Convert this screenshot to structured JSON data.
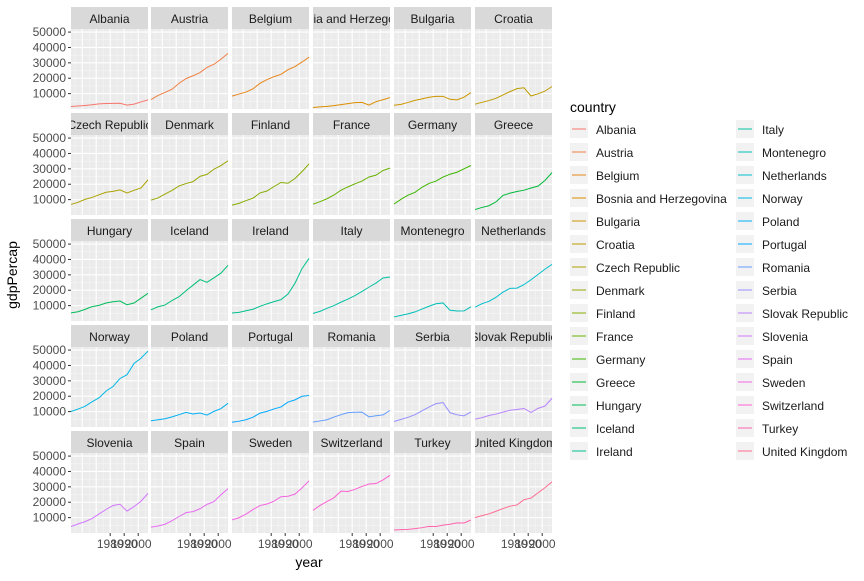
{
  "chart_data": {
    "type": "line",
    "facet_by": "country",
    "xlabel": "year",
    "ylabel": "gdpPercap",
    "x_ticks": [
      1980,
      1990,
      2000
    ],
    "x_tick_labels": [
      "1980",
      "1990",
      "2000"
    ],
    "y_ticks": [
      10000,
      20000,
      30000,
      40000,
      50000
    ],
    "y_tick_labels": [
      "10000",
      "20000",
      "30000",
      "40000",
      "50000"
    ],
    "xlim": [
      1952,
      2007
    ],
    "ylim": [
      0,
      52000
    ],
    "grid": true,
    "legend_position": "right",
    "legend_title": "country",
    "x": [
      1952,
      1957,
      1962,
      1967,
      1972,
      1977,
      1982,
      1987,
      1992,
      1997,
      2002,
      2007
    ],
    "series": [
      {
        "name": "Albania",
        "color": "#F8766D",
        "values": [
          1601,
          1942,
          2313,
          2760,
          3313,
          3533,
          3631,
          3739,
          2497,
          3193,
          4604,
          5937
        ]
      },
      {
        "name": "Austria",
        "color": "#F17F43",
        "values": [
          6137,
          8843,
          10751,
          12835,
          16662,
          19749,
          21597,
          23688,
          27042,
          29096,
          32418,
          36126
        ]
      },
      {
        "name": "Belgium",
        "color": "#E7861B",
        "values": [
          8343,
          9715,
          10991,
          13149,
          16672,
          19118,
          20980,
          22526,
          25576,
          27561,
          30486,
          33693
        ]
      },
      {
        "name": "Bosnia and Herzegovina",
        "color": "#DB8E00",
        "values": [
          974,
          1354,
          1710,
          2172,
          2860,
          3528,
          4127,
          4314,
          2547,
          4766,
          6019,
          7446
        ]
      },
      {
        "name": "Bulgaria",
        "color": "#CD9600",
        "values": [
          2444,
          3009,
          4255,
          5578,
          6597,
          7612,
          8224,
          8240,
          6303,
          5970,
          7697,
          10681
        ]
      },
      {
        "name": "Croatia",
        "color": "#BE9C00",
        "values": [
          3119,
          4339,
          5478,
          6960,
          9164,
          11305,
          13222,
          13823,
          8448,
          9876,
          11628,
          14619
        ]
      },
      {
        "name": "Czech Republic",
        "color": "#ADA200",
        "values": [
          6876,
          8256,
          10137,
          11399,
          13108,
          14800,
          15377,
          16310,
          14297,
          16049,
          17596,
          22833
        ]
      },
      {
        "name": "Denmark",
        "color": "#9AA800",
        "values": [
          9692,
          11100,
          13583,
          15937,
          18866,
          20423,
          21688,
          25116,
          26407,
          29804,
          32167,
          35278
        ]
      },
      {
        "name": "Finland",
        "color": "#84AD00",
        "values": [
          6425,
          7546,
          9372,
          10922,
          14359,
          15605,
          18533,
          21141,
          20647,
          23724,
          28205,
          33207
        ]
      },
      {
        "name": "France",
        "color": "#68B100",
        "values": [
          7030,
          8663,
          10560,
          12999,
          16107,
          18293,
          20294,
          22066,
          24704,
          25890,
          28926,
          30470
        ]
      },
      {
        "name": "Germany",
        "color": "#3DB600",
        "values": [
          7144,
          10188,
          12902,
          14746,
          18016,
          20513,
          22032,
          24639,
          26505,
          27789,
          30036,
          32170
        ]
      },
      {
        "name": "Greece",
        "color": "#00BA38",
        "values": [
          3531,
          4916,
          6017,
          8513,
          12725,
          14196,
          15268,
          16121,
          17541,
          18748,
          22514,
          27538
        ]
      },
      {
        "name": "Hungary",
        "color": "#00BC59",
        "values": [
          5264,
          6040,
          7550,
          9326,
          10168,
          11674,
          12546,
          12986,
          10536,
          11712,
          14844,
          18009
        ]
      },
      {
        "name": "Iceland",
        "color": "#00BF76",
        "values": [
          7268,
          9244,
          10350,
          13320,
          15798,
          19655,
          23270,
          26923,
          25144,
          28061,
          31163,
          36181
        ]
      },
      {
        "name": "Ireland",
        "color": "#00C08E",
        "values": [
          5211,
          5599,
          6632,
          7656,
          9531,
          11151,
          12618,
          13873,
          17559,
          24522,
          34077,
          40676
        ]
      },
      {
        "name": "Italy",
        "color": "#00C1A3",
        "values": [
          4931,
          6249,
          8244,
          10022,
          12269,
          14256,
          16537,
          19208,
          22014,
          24675,
          27968,
          28570
        ]
      },
      {
        "name": "Montenegro",
        "color": "#00C0B8",
        "values": [
          2648,
          3682,
          4650,
          5907,
          7779,
          9596,
          11223,
          11733,
          7003,
          6466,
          6557,
          9254
        ]
      },
      {
        "name": "Netherlands",
        "color": "#00BDCD",
        "values": [
          8942,
          11276,
          12791,
          15363,
          18795,
          21209,
          21400,
          23651,
          26791,
          30246,
          33725,
          36798
        ]
      },
      {
        "name": "Norway",
        "color": "#00B8E5",
        "values": [
          10095,
          11654,
          13450,
          16362,
          18965,
          23311,
          26298,
          31541,
          33966,
          41283,
          44684,
          49357
        ]
      },
      {
        "name": "Poland",
        "color": "#00B0F6",
        "values": [
          4029,
          4734,
          5339,
          6557,
          8007,
          9508,
          8452,
          9082,
          7739,
          10160,
          12002,
          15390
        ]
      },
      {
        "name": "Portugal",
        "color": "#00A8FF",
        "values": [
          3068,
          3775,
          4727,
          6362,
          9022,
          10172,
          11754,
          13039,
          16207,
          17642,
          19971,
          20510
        ]
      },
      {
        "name": "Romania",
        "color": "#619CFF",
        "values": [
          3145,
          3943,
          4734,
          6471,
          8011,
          9356,
          9605,
          9697,
          6599,
          7346,
          7885,
          10808
        ]
      },
      {
        "name": "Serbia",
        "color": "#9590FF",
        "values": [
          3581,
          4981,
          6290,
          7991,
          10523,
          12980,
          15181,
          15871,
          9325,
          7914,
          7236,
          9787
        ]
      },
      {
        "name": "Slovak Republic",
        "color": "#B983FF",
        "values": [
          5074,
          6094,
          7481,
          8412,
          9674,
          10922,
          11348,
          12037,
          9498,
          12126,
          13638,
          18678
        ]
      },
      {
        "name": "Slovenia",
        "color": "#D376FF",
        "values": [
          4215,
          5862,
          7402,
          9405,
          12383,
          15278,
          17867,
          18678,
          14214,
          17161,
          20660,
          25768
        ]
      },
      {
        "name": "Spain",
        "color": "#E76BF3",
        "values": [
          3834,
          4565,
          5694,
          7994,
          10639,
          13237,
          13926,
          15765,
          18603,
          20445,
          24835,
          28821
        ]
      },
      {
        "name": "Sweden",
        "color": "#F564E3",
        "values": [
          8528,
          9912,
          12329,
          15258,
          17832,
          18856,
          20667,
          23587,
          23880,
          25267,
          29342,
          33860
        ]
      },
      {
        "name": "Switzerland",
        "color": "#FD61D1",
        "values": [
          14734,
          17909,
          20431,
          22966,
          27195,
          26982,
          28398,
          30282,
          31872,
          32135,
          34481,
          37506
        ]
      },
      {
        "name": "Turkey",
        "color": "#FF64B0",
        "values": [
          1969,
          2219,
          2323,
          2826,
          3451,
          4270,
          4241,
          5089,
          5678,
          6601,
          6508,
          8458
        ]
      },
      {
        "name": "United Kingdom",
        "color": "#FF6C91",
        "values": [
          9980,
          11283,
          12477,
          14143,
          15895,
          17429,
          18232,
          21665,
          22705,
          26075,
          29479,
          33203
        ]
      }
    ]
  }
}
